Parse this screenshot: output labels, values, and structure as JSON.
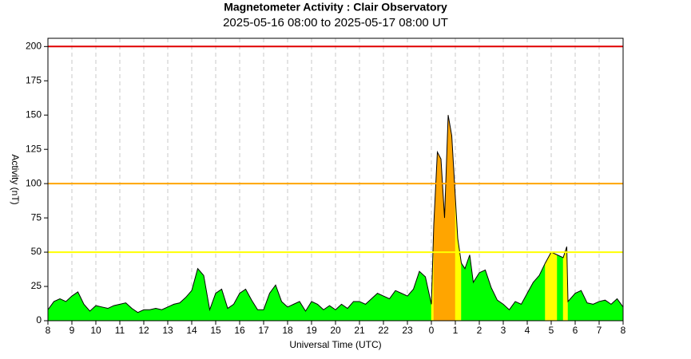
{
  "chart_data": {
    "type": "area",
    "title": "Magnetometer Activity : Clair Observatory",
    "subtitle": "2025-05-16 08:00 to 2025-05-17 08:00 UT",
    "x_label": "Universal Time (UTC)",
    "y_label": "Activity (nT)",
    "xlim": [
      0,
      24
    ],
    "ylim": [
      0,
      206
    ],
    "xticks": [
      {
        "value": 0,
        "label": "8"
      },
      {
        "value": 1,
        "label": "9"
      },
      {
        "value": 2,
        "label": "10"
      },
      {
        "value": 3,
        "label": "11"
      },
      {
        "value": 4,
        "label": "12"
      },
      {
        "value": 5,
        "label": "13"
      },
      {
        "value": 6,
        "label": "14"
      },
      {
        "value": 7,
        "label": "15"
      },
      {
        "value": 8,
        "label": "16"
      },
      {
        "value": 9,
        "label": "17"
      },
      {
        "value": 10,
        "label": "18"
      },
      {
        "value": 11,
        "label": "19"
      },
      {
        "value": 12,
        "label": "20"
      },
      {
        "value": 13,
        "label": "21"
      },
      {
        "value": 14,
        "label": "22"
      },
      {
        "value": 15,
        "label": "23"
      },
      {
        "value": 16,
        "label": "0"
      },
      {
        "value": 17,
        "label": "1"
      },
      {
        "value": 18,
        "label": "2"
      },
      {
        "value": 19,
        "label": "3"
      },
      {
        "value": 20,
        "label": "4"
      },
      {
        "value": 21,
        "label": "5"
      },
      {
        "value": 22,
        "label": "6"
      },
      {
        "value": 23,
        "label": "7"
      },
      {
        "value": 24,
        "label": "8"
      }
    ],
    "yticks": [
      0,
      25,
      50,
      75,
      100,
      125,
      150,
      175,
      200
    ],
    "grid": true,
    "line_color": "#000000",
    "base_color": "#00ff00",
    "levels": [
      {
        "value": 50,
        "color": "#ffff00"
      },
      {
        "value": 100,
        "color": "#ffa500"
      },
      {
        "value": 200,
        "color": "#e00000"
      }
    ],
    "x": [
      0,
      0.25,
      0.5,
      0.75,
      1,
      1.25,
      1.5,
      1.75,
      2,
      2.25,
      2.5,
      2.75,
      3,
      3.25,
      3.5,
      3.75,
      4,
      4.25,
      4.5,
      4.75,
      5,
      5.25,
      5.5,
      5.75,
      6,
      6.25,
      6.5,
      6.75,
      7,
      7.25,
      7.5,
      7.75,
      8,
      8.25,
      8.5,
      8.75,
      9,
      9.25,
      9.5,
      9.75,
      10,
      10.25,
      10.5,
      10.75,
      11,
      11.25,
      11.5,
      11.75,
      12,
      12.25,
      12.5,
      12.75,
      13,
      13.25,
      13.5,
      13.75,
      14,
      14.25,
      14.5,
      14.75,
      15,
      15.25,
      15.5,
      15.75,
      16,
      16.1,
      16.25,
      16.4,
      16.55,
      16.7,
      16.85,
      17,
      17.1,
      17.25,
      17.4,
      17.6,
      17.75,
      18,
      18.25,
      18.5,
      18.75,
      19,
      19.25,
      19.5,
      19.75,
      20,
      20.25,
      20.5,
      20.75,
      21,
      21.25,
      21.5,
      21.65,
      21.7,
      22,
      22.25,
      22.5,
      22.75,
      23,
      23.25,
      23.5,
      23.75,
      24
    ],
    "values": [
      8,
      14,
      16,
      14,
      18,
      21,
      12,
      7,
      11,
      10,
      9,
      11,
      12,
      13,
      9,
      6,
      8,
      8,
      9,
      8,
      10,
      12,
      13,
      17,
      22,
      38,
      33,
      8,
      20,
      23,
      9,
      12,
      20,
      23,
      15,
      8,
      8,
      20,
      26,
      14,
      10,
      12,
      14,
      7,
      14,
      12,
      8,
      11,
      8,
      12,
      9,
      14,
      14,
      12,
      16,
      20,
      18,
      16,
      22,
      20,
      18,
      23,
      36,
      32,
      12,
      70,
      123,
      118,
      75,
      150,
      135,
      90,
      60,
      42,
      38,
      48,
      28,
      35,
      37,
      24,
      15,
      12,
      8,
      14,
      12,
      20,
      28,
      33,
      42,
      50,
      48,
      46,
      54,
      14,
      20,
      22,
      13,
      12,
      14,
      15,
      12,
      16,
      10
    ]
  }
}
